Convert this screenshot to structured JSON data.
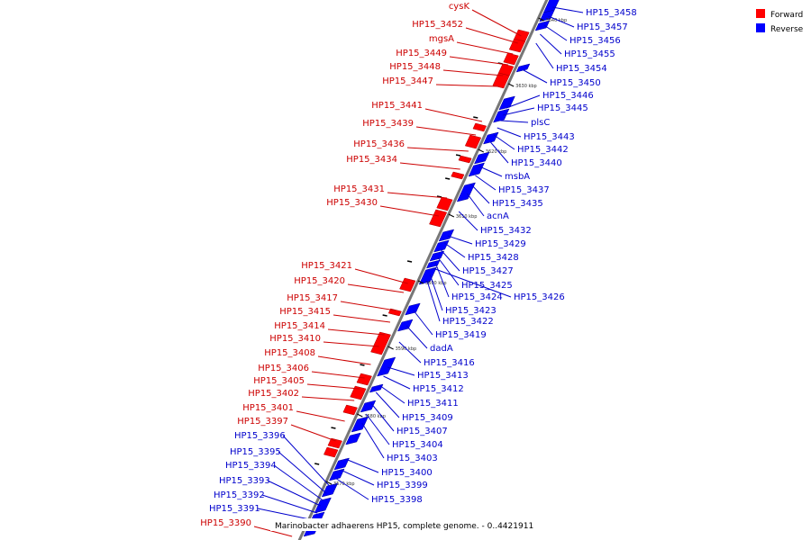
{
  "colors": {
    "forward": "#ff0000",
    "reverse": "#0000ff",
    "forward_label": "#cc0000",
    "reverse_label": "#0000cc",
    "backbone": "#777777"
  },
  "legend": {
    "forward": "Forward",
    "reverse": "Reverse"
  },
  "caption": "Marinobacter adhaerens HP15, complete genome. - 0..4421911",
  "scale_ticks": [
    "3640 kbp",
    "3630 kbp",
    "3620 kbp",
    "3610 kbp",
    "3600 kbp",
    "3590 kbp",
    "3580 kbp",
    "3570 kbp"
  ],
  "forward_genes": [
    "cysK",
    "HP15_3452",
    "mgsA",
    "HP15_3449",
    "HP15_3448",
    "HP15_3447",
    "HP15_3441",
    "HP15_3439",
    "HP15_3436",
    "HP15_3434",
    "HP15_3431",
    "HP15_3430",
    "HP15_3421",
    "HP15_3420",
    "HP15_3417",
    "HP15_3415",
    "HP15_3414",
    "HP15_3410",
    "HP15_3408",
    "HP15_3406",
    "HP15_3405",
    "HP15_3402",
    "HP15_3401",
    "HP15_3397",
    "HP15_3390"
  ],
  "reverse_genes": [
    "HP15_3458",
    "HP15_3457",
    "HP15_3456",
    "HP15_3455",
    "HP15_3454",
    "HP15_3450",
    "HP15_3446",
    "HP15_3445",
    "plsC",
    "HP15_3443",
    "HP15_3442",
    "HP15_3440",
    "msbA",
    "HP15_3437",
    "HP15_3435",
    "acnA",
    "HP15_3432",
    "HP15_3429",
    "HP15_3428",
    "HP15_3427",
    "HP15_3425",
    "HP15_3424",
    "HP15_3426",
    "HP15_3423",
    "HP15_3422",
    "HP15_3419",
    "dadA",
    "HP15_3416",
    "HP15_3413",
    "HP15_3412",
    "HP15_3411",
    "HP15_3409",
    "HP15_3407",
    "HP15_3404",
    "HP15_3403",
    "HP15_3400",
    "HP15_3399",
    "HP15_3398",
    "HP15_3396",
    "HP15_3395",
    "HP15_3394",
    "HP15_3393",
    "HP15_3392",
    "HP15_3391"
  ]
}
